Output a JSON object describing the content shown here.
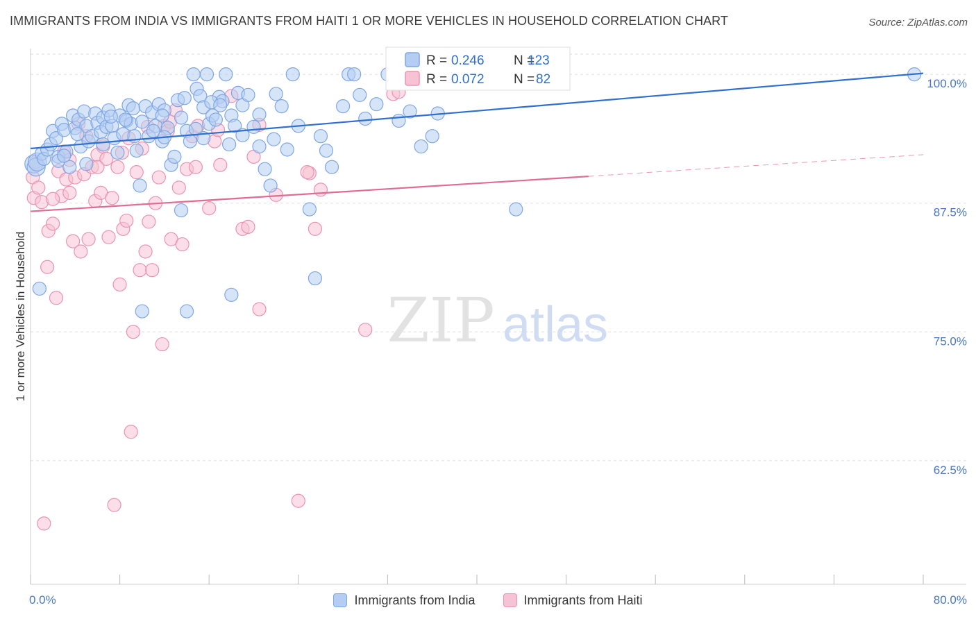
{
  "title": "IMMIGRANTS FROM INDIA VS IMMIGRANTS FROM HAITI 1 OR MORE VEHICLES IN HOUSEHOLD CORRELATION CHART",
  "source": "Source: ZipAtlas.com",
  "watermark": {
    "zip": "ZIP",
    "atlas": "atlas"
  },
  "colors": {
    "india_fill": "#b5cdf2",
    "india_stroke": "#7fa6e4",
    "india_line": "#2f6fd0",
    "haiti_fill": "#f7c3d4",
    "haiti_stroke": "#ea93b2",
    "haiti_line": "#e06b93",
    "tick_text": "#4a78c2",
    "grid": "#dddddd"
  },
  "chart_data": {
    "type": "scatter",
    "title": "IMMIGRANTS FROM INDIA VS IMMIGRANTS FROM HAITI 1 OR MORE VEHICLES IN HOUSEHOLD CORRELATION CHART",
    "xlabel": "",
    "ylabel": "1 or more Vehicles in Household",
    "xlim": [
      0,
      80
    ],
    "ylim": [
      50.5,
      102.5
    ],
    "x_tick_labels": [
      "0.0%",
      "80.0%"
    ],
    "y_ticks": [
      62.5,
      75.0,
      87.5,
      100.0
    ],
    "y_tick_labels": [
      "62.5%",
      "75.0%",
      "87.5%",
      "100.0%"
    ],
    "grid": true,
    "legend_position": "top-center",
    "stats": [
      {
        "series": "Immigrants from India",
        "r_label": "R =",
        "r": "0.246",
        "n_label": "N =",
        "n": "123"
      },
      {
        "series": "Immigrants from Haiti",
        "r_label": "R =",
        "r": "0.072",
        "n_label": "N =",
        "n": "82"
      }
    ],
    "series": [
      {
        "name": "Immigrants from India",
        "trend": {
          "x": [
            0,
            80
          ],
          "y": [
            92.8,
            100.1
          ]
        },
        "points": [
          [
            0.3,
            91.3
          ],
          [
            0.5,
            91.0
          ],
          [
            0.6,
            91.5
          ],
          [
            0.8,
            79.2
          ],
          [
            1.0,
            92.3
          ],
          [
            1.2,
            91.8
          ],
          [
            1.5,
            92.7
          ],
          [
            1.8,
            93.2
          ],
          [
            2.0,
            94.5
          ],
          [
            2.3,
            93.8
          ],
          [
            2.5,
            92.0
          ],
          [
            2.8,
            95.2
          ],
          [
            3.0,
            94.6
          ],
          [
            3.2,
            92.5
          ],
          [
            3.5,
            91.0
          ],
          [
            3.8,
            96.0
          ],
          [
            4.0,
            94.8
          ],
          [
            4.3,
            95.6
          ],
          [
            4.5,
            93.0
          ],
          [
            4.8,
            96.4
          ],
          [
            5.0,
            95.0
          ],
          [
            5.2,
            93.5
          ],
          [
            5.5,
            94.0
          ],
          [
            5.8,
            96.2
          ],
          [
            6.0,
            95.3
          ],
          [
            6.3,
            94.4
          ],
          [
            6.5,
            95.8
          ],
          [
            6.8,
            94.9
          ],
          [
            7.0,
            96.5
          ],
          [
            7.3,
            95.0
          ],
          [
            7.5,
            93.8
          ],
          [
            7.8,
            92.4
          ],
          [
            8.0,
            96.0
          ],
          [
            8.3,
            94.2
          ],
          [
            8.6,
            95.5
          ],
          [
            8.8,
            97.0
          ],
          [
            9.0,
            95.2
          ],
          [
            9.3,
            94.0
          ],
          [
            9.5,
            92.6
          ],
          [
            9.8,
            89.2
          ],
          [
            10.0,
            95.4
          ],
          [
            10.3,
            96.9
          ],
          [
            10.6,
            94.0
          ],
          [
            10.9,
            96.3
          ],
          [
            11.2,
            95.0
          ],
          [
            11.5,
            97.1
          ],
          [
            11.8,
            93.5
          ],
          [
            12.0,
            96.5
          ],
          [
            12.3,
            94.8
          ],
          [
            12.6,
            91.2
          ],
          [
            12.9,
            92.0
          ],
          [
            13.2,
            97.5
          ],
          [
            13.5,
            95.8
          ],
          [
            13.8,
            97.7
          ],
          [
            14.0,
            94.5
          ],
          [
            14.3,
            93.5
          ],
          [
            14.6,
            100.0
          ],
          [
            14.9,
            98.6
          ],
          [
            15.2,
            97.9
          ],
          [
            15.5,
            96.8
          ],
          [
            15.8,
            100.0
          ],
          [
            16.0,
            95.2
          ],
          [
            16.3,
            96.0
          ],
          [
            16.6,
            95.6
          ],
          [
            16.9,
            97.8
          ],
          [
            17.2,
            97.4
          ],
          [
            17.5,
            100.0
          ],
          [
            17.8,
            93.2
          ],
          [
            18.0,
            96.0
          ],
          [
            18.3,
            95.0
          ],
          [
            18.6,
            98.2
          ],
          [
            19.0,
            97.0
          ],
          [
            19.5,
            98.0
          ],
          [
            20.0,
            94.9
          ],
          [
            20.5,
            93.0
          ],
          [
            21.0,
            90.8
          ],
          [
            21.5,
            89.2
          ],
          [
            22.0,
            98.1
          ],
          [
            22.5,
            96.9
          ],
          [
            23.0,
            92.7
          ],
          [
            23.5,
            100.0
          ],
          [
            24.0,
            95.0
          ],
          [
            25.0,
            86.9
          ],
          [
            25.5,
            80.2
          ],
          [
            26.0,
            94.0
          ],
          [
            27.0,
            91.0
          ],
          [
            28.0,
            96.9
          ],
          [
            28.5,
            100.0
          ],
          [
            29.0,
            100.0
          ],
          [
            29.5,
            98.0
          ],
          [
            30.0,
            95.7
          ],
          [
            31.0,
            97.1
          ],
          [
            32.0,
            100.0
          ],
          [
            33.0,
            95.5
          ],
          [
            34.0,
            96.4
          ],
          [
            35.0,
            93.0
          ],
          [
            36.0,
            94.0
          ],
          [
            36.5,
            96.2
          ],
          [
            2.5,
            91.6
          ],
          [
            3.0,
            92.1
          ],
          [
            5.0,
            91.3
          ],
          [
            6.5,
            93.2
          ],
          [
            8.5,
            95.6
          ],
          [
            11.0,
            94.5
          ],
          [
            12.0,
            93.9
          ],
          [
            13.5,
            86.8
          ],
          [
            14.0,
            77.0
          ],
          [
            15.5,
            93.8
          ],
          [
            18.0,
            78.6
          ],
          [
            19.0,
            94.1
          ],
          [
            20.5,
            96.1
          ],
          [
            10.0,
            77.0
          ],
          [
            4.2,
            94.2
          ],
          [
            7.2,
            95.9
          ],
          [
            9.2,
            96.7
          ],
          [
            11.8,
            96.0
          ],
          [
            14.8,
            94.7
          ],
          [
            16.2,
            97.3
          ],
          [
            43.5,
            86.9
          ],
          [
            79.2,
            100.0
          ],
          [
            17.0,
            97.0
          ],
          [
            21.8,
            93.7
          ],
          [
            26.5,
            92.6
          ]
        ]
      },
      {
        "name": "Immigrants from Haiti",
        "trend": {
          "x": [
            0,
            50
          ],
          "y": [
            86.7,
            90.1
          ]
        },
        "trend_extension": {
          "x": [
            50,
            80
          ],
          "y": [
            90.1,
            92.2
          ]
        },
        "points": [
          [
            0.2,
            90.0
          ],
          [
            0.3,
            88.0
          ],
          [
            0.5,
            91.5
          ],
          [
            0.7,
            89.0
          ],
          [
            1.0,
            87.6
          ],
          [
            1.2,
            56.4
          ],
          [
            1.5,
            81.3
          ],
          [
            1.6,
            84.8
          ],
          [
            2.0,
            85.5
          ],
          [
            2.3,
            78.3
          ],
          [
            2.5,
            90.6
          ],
          [
            2.8,
            88.2
          ],
          [
            3.0,
            92.5
          ],
          [
            3.2,
            89.8
          ],
          [
            3.5,
            88.5
          ],
          [
            3.8,
            83.8
          ],
          [
            4.0,
            90.0
          ],
          [
            4.3,
            95.2
          ],
          [
            4.5,
            82.8
          ],
          [
            4.8,
            90.3
          ],
          [
            5.0,
            94.0
          ],
          [
            5.2,
            84.0
          ],
          [
            5.5,
            91.0
          ],
          [
            5.8,
            87.7
          ],
          [
            6.0,
            92.2
          ],
          [
            6.3,
            88.5
          ],
          [
            6.5,
            93.0
          ],
          [
            6.8,
            91.8
          ],
          [
            7.0,
            84.2
          ],
          [
            7.3,
            88.0
          ],
          [
            7.5,
            58.2
          ],
          [
            7.8,
            91.0
          ],
          [
            8.0,
            79.6
          ],
          [
            8.3,
            85.0
          ],
          [
            8.6,
            85.8
          ],
          [
            8.8,
            93.8
          ],
          [
            9.0,
            65.3
          ],
          [
            9.2,
            75.0
          ],
          [
            9.5,
            90.5
          ],
          [
            9.8,
            81.0
          ],
          [
            10.0,
            92.8
          ],
          [
            10.3,
            82.8
          ],
          [
            10.6,
            85.7
          ],
          [
            10.9,
            81.0
          ],
          [
            11.2,
            87.5
          ],
          [
            11.5,
            90.0
          ],
          [
            11.8,
            73.8
          ],
          [
            12.0,
            95.0
          ],
          [
            12.3,
            94.5
          ],
          [
            12.6,
            84.0
          ],
          [
            13.0,
            96.5
          ],
          [
            13.3,
            89.0
          ],
          [
            13.6,
            83.5
          ],
          [
            14.0,
            90.8
          ],
          [
            14.5,
            94.0
          ],
          [
            15.0,
            95.0
          ],
          [
            16.0,
            87.0
          ],
          [
            16.5,
            93.5
          ],
          [
            17.0,
            91.2
          ],
          [
            18.0,
            97.9
          ],
          [
            19.0,
            85.0
          ],
          [
            19.5,
            85.2
          ],
          [
            20.0,
            92.0
          ],
          [
            20.5,
            77.2
          ],
          [
            22.0,
            88.3
          ],
          [
            24.0,
            58.6
          ],
          [
            25.0,
            90.4
          ],
          [
            25.5,
            85.0
          ],
          [
            26.0,
            88.8
          ],
          [
            30.0,
            75.2
          ],
          [
            32.5,
            98.1
          ],
          [
            2.0,
            87.9
          ],
          [
            3.5,
            91.7
          ],
          [
            6.0,
            91.0
          ],
          [
            8.2,
            92.4
          ],
          [
            10.5,
            94.9
          ],
          [
            12.5,
            95.4
          ],
          [
            14.8,
            91.0
          ],
          [
            16.8,
            94.6
          ],
          [
            20.5,
            95.1
          ],
          [
            24.8,
            90.5
          ],
          [
            33.0,
            98.3
          ]
        ]
      }
    ]
  },
  "bottom_legend": [
    {
      "label": "Immigrants from India"
    },
    {
      "label": "Immigrants from Haiti"
    }
  ]
}
